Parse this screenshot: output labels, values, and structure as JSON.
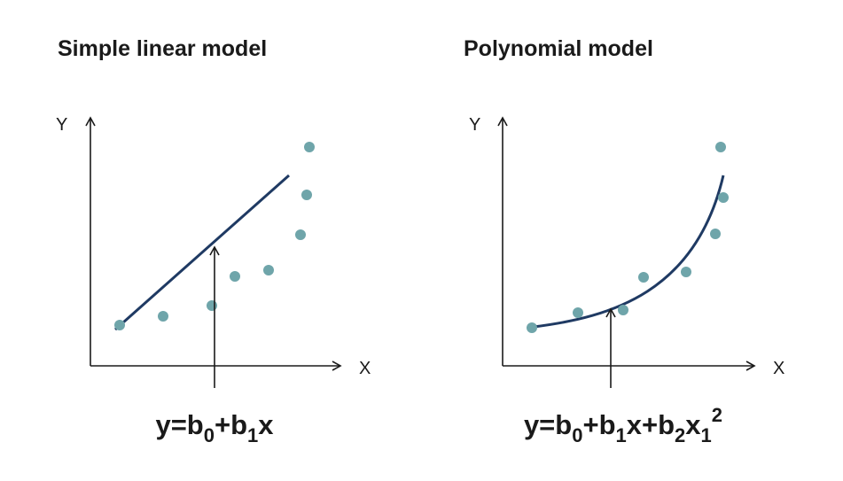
{
  "panels": [
    {
      "title": "Simple linear model",
      "y_label": "Y",
      "x_label": "X",
      "formula": [
        {
          "text": "y=b"
        },
        {
          "sub": "0"
        },
        {
          "text": "+b"
        },
        {
          "sub": "1"
        },
        {
          "text": "x"
        }
      ]
    },
    {
      "title": "Polynomial model",
      "y_label": "Y",
      "x_label": "X",
      "formula": [
        {
          "text": "y=b"
        },
        {
          "sub": "0"
        },
        {
          "text": "+b"
        },
        {
          "sub": "1"
        },
        {
          "text": "x+b"
        },
        {
          "sub": "2"
        },
        {
          "text": "x"
        },
        {
          "sub": "1"
        },
        {
          "sup": "2"
        }
      ]
    }
  ]
}
